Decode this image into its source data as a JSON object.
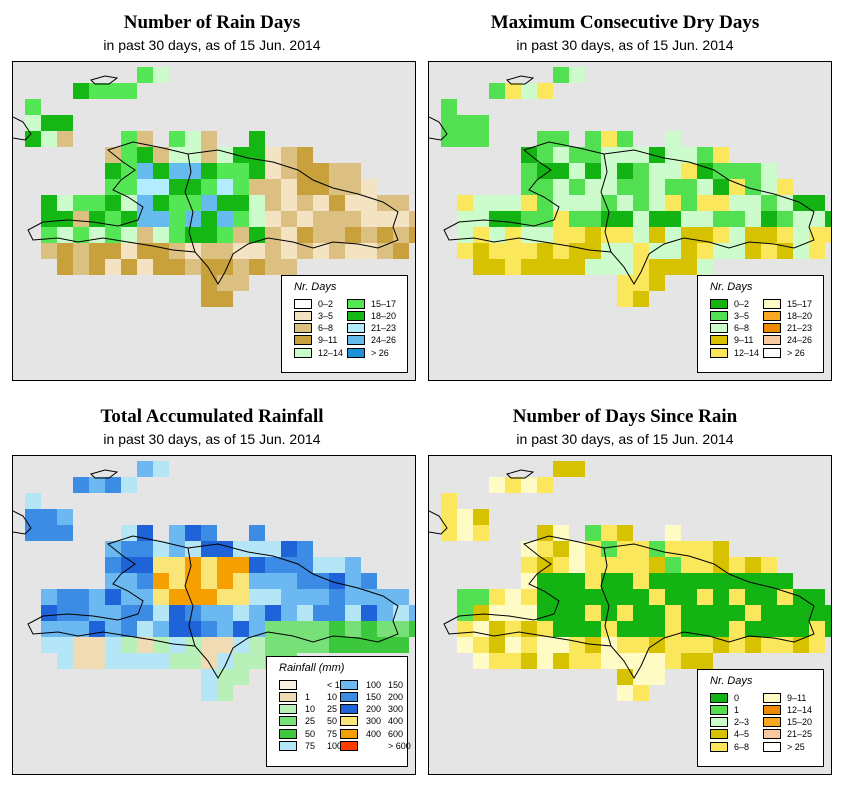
{
  "panels": [
    {
      "id": "rain-days",
      "title": "Number of Rain Days",
      "subtitle": "in past 30 days, as of  15 Jun. 2014",
      "legend": {
        "title": "Nr. Days",
        "items": [
          {
            "label": "0–2",
            "color": "#ffffff"
          },
          {
            "label": "3–5",
            "color": "#f3e3c3"
          },
          {
            "label": "6–8",
            "color": "#dcc082"
          },
          {
            "label": "9–11",
            "color": "#c9a13c"
          },
          {
            "label": "12–14",
            "color": "#ccfccc"
          },
          {
            "label": "15–17",
            "color": "#55e655"
          },
          {
            "label": "18–20",
            "color": "#15b715"
          },
          {
            "label": "21–23",
            "color": "#b3ebff"
          },
          {
            "label": "24–26",
            "color": "#66bbee"
          },
          {
            "label": "> 26",
            "color": "#1e8fd8"
          }
        ]
      }
    },
    {
      "id": "max-dry-days",
      "title": "Maximum Consecutive Dry Days",
      "subtitle": "in past 30 days, as of  15 Jun. 2014",
      "legend": {
        "title": "Nr. Days",
        "items": [
          {
            "label": "0–2",
            "color": "#12b312"
          },
          {
            "label": "3–5",
            "color": "#52e052"
          },
          {
            "label": "6–8",
            "color": "#ccfccc"
          },
          {
            "label": "9–11",
            "color": "#d6c200"
          },
          {
            "label": "12–14",
            "color": "#fae75c"
          },
          {
            "label": "15–17",
            "color": "#fffbc4"
          },
          {
            "label": "18–20",
            "color": "#f6a820"
          },
          {
            "label": "21–23",
            "color": "#ee8a00"
          },
          {
            "label": "24–26",
            "color": "#f8c8a0"
          },
          {
            "label": "> 26",
            "color": "#ffffff"
          }
        ]
      }
    },
    {
      "id": "total-rainfall",
      "title": "Total Accumulated Rainfall",
      "subtitle": "in past 30 days, as of  15 Jun. 2014",
      "legend": {
        "title": "Rainfall (mm)",
        "items": [
          {
            "lo": "",
            "hi": "< 1",
            "color": "#f8f0dc"
          },
          {
            "lo": "1",
            "hi": "10",
            "color": "#f0dcb4"
          },
          {
            "lo": "10",
            "hi": "25",
            "color": "#b8f0b8"
          },
          {
            "lo": "25",
            "hi": "50",
            "color": "#78e078"
          },
          {
            "lo": "50",
            "hi": "75",
            "color": "#3cc83c"
          },
          {
            "lo": "75",
            "hi": "100",
            "color": "#b4e6f8"
          },
          {
            "lo": "100",
            "hi": "150",
            "color": "#6cb8f0"
          },
          {
            "lo": "150",
            "hi": "200",
            "color": "#3c8ce6"
          },
          {
            "lo": "200",
            "hi": "300",
            "color": "#1e64d8"
          },
          {
            "lo": "300",
            "hi": "400",
            "color": "#fae678"
          },
          {
            "lo": "400",
            "hi": "600",
            "color": "#f5a000"
          },
          {
            "lo": "",
            "hi": "> 600",
            "color": "#ff3c00"
          }
        ]
      }
    },
    {
      "id": "days-since-rain",
      "title": "Number of Days Since Rain",
      "subtitle": "in past 30 days, as of  15 Jun. 2014",
      "legend": {
        "title": "Nr. Days",
        "items": [
          {
            "label": "0",
            "color": "#12b312"
          },
          {
            "label": "1",
            "color": "#52e052"
          },
          {
            "label": "2–3",
            "color": "#ccfccc"
          },
          {
            "label": "4–5",
            "color": "#d6c200"
          },
          {
            "label": "6–8",
            "color": "#fae75c"
          },
          {
            "label": "9–11",
            "color": "#fffbc4"
          },
          {
            "label": "12–14",
            "color": "#ee8a00"
          },
          {
            "label": "15–20",
            "color": "#f6a820"
          },
          {
            "label": "21–25",
            "color": "#f8c8a0"
          },
          {
            "label": "> 25",
            "color": "#ffffff"
          }
        ]
      }
    }
  ]
}
